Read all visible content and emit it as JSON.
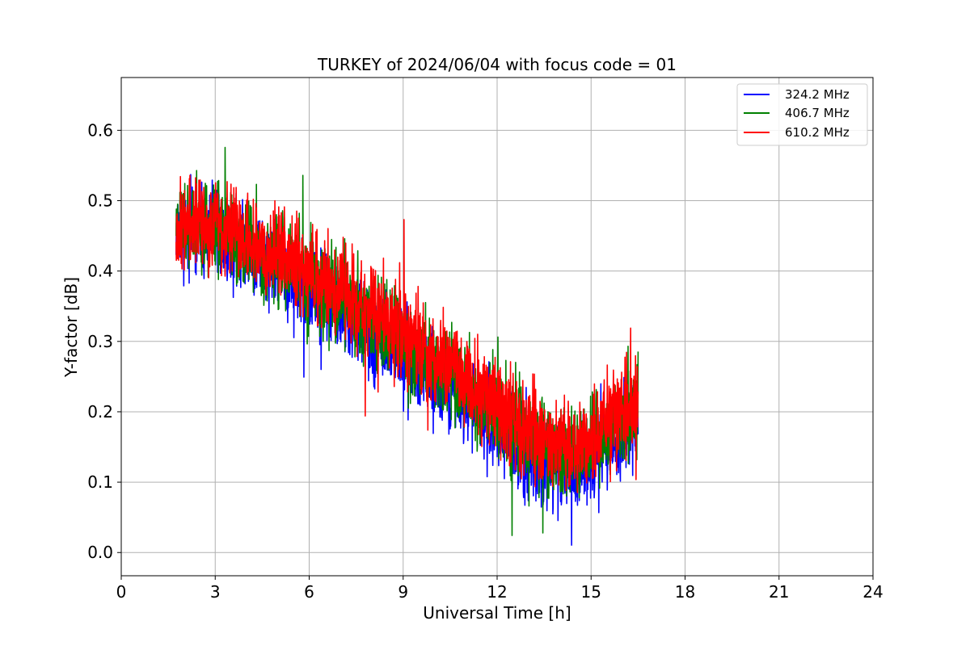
{
  "chart_data": {
    "type": "line",
    "title": "TURKEY of 2024/06/04 with focus code = 01",
    "xlabel": "Universal Time [h]",
    "ylabel": "Y-factor [dB]",
    "xlim": [
      0,
      24
    ],
    "ylim": [
      -0.033,
      0.675
    ],
    "x_ticks": [
      0,
      3,
      6,
      9,
      12,
      15,
      18,
      21,
      24
    ],
    "y_ticks": [
      0.0,
      0.1,
      0.2,
      0.3,
      0.4,
      0.5,
      0.6
    ],
    "y_tick_labels": [
      "0.0",
      "0.1",
      "0.2",
      "0.3",
      "0.4",
      "0.5",
      "0.6"
    ],
    "grid": true,
    "legend_position": "top-right",
    "x_range": [
      1.75,
      16.5
    ],
    "series": [
      {
        "name": "324.2 MHz",
        "color": "#0000ff",
        "trend_x": [
          1.75,
          3,
          4.5,
          6,
          7.5,
          9,
          10.5,
          12,
          13.5,
          14.5,
          15.5,
          16.5
        ],
        "trend_y": [
          0.46,
          0.45,
          0.42,
          0.37,
          0.33,
          0.28,
          0.23,
          0.18,
          0.12,
          0.12,
          0.15,
          0.19
        ],
        "spread": 0.08,
        "seed": 11
      },
      {
        "name": "406.7 MHz",
        "color": "#008000",
        "trend_x": [
          1.75,
          3,
          4.5,
          6,
          7.5,
          9,
          10.5,
          12,
          13.5,
          14.5,
          15.5,
          16.5
        ],
        "trend_y": [
          0.47,
          0.46,
          0.43,
          0.39,
          0.35,
          0.3,
          0.25,
          0.2,
          0.15,
          0.14,
          0.17,
          0.21
        ],
        "spread": 0.085,
        "seed": 23
      },
      {
        "name": "610.2 MHz",
        "color": "#ff0000",
        "trend_x": [
          1.75,
          3,
          4.5,
          6,
          7.5,
          9,
          10.5,
          12,
          13.5,
          14.5,
          15.5,
          16.5
        ],
        "trend_y": [
          0.47,
          0.465,
          0.44,
          0.4,
          0.36,
          0.31,
          0.26,
          0.21,
          0.16,
          0.15,
          0.18,
          0.22
        ],
        "spread": 0.085,
        "seed": 37
      }
    ]
  }
}
